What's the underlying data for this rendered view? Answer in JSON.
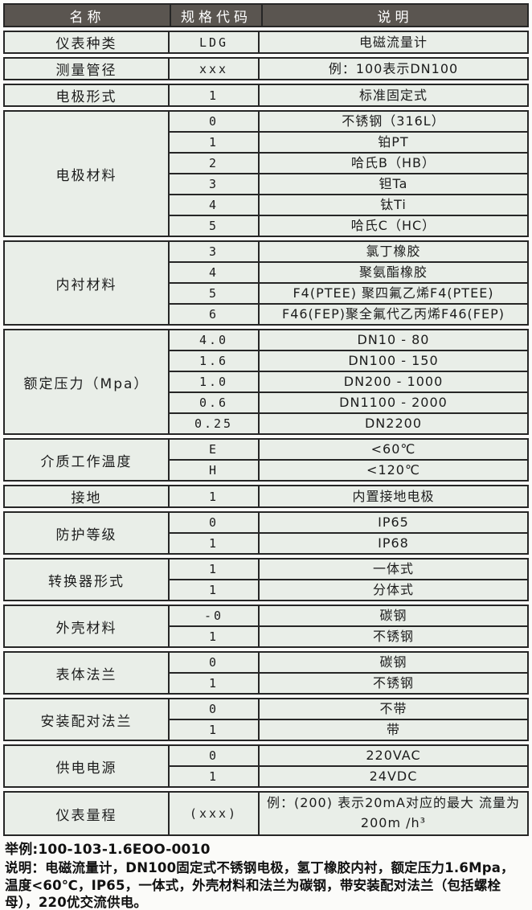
{
  "table": {
    "header": {
      "col1": "名称",
      "col2": "规格代码",
      "col3": "说明"
    },
    "groups": [
      {
        "name": "仪表种类",
        "rows": [
          {
            "code": "LDG",
            "desc": "电磁流量计"
          }
        ]
      },
      {
        "name": "测量管径",
        "rows": [
          {
            "code": "xxx",
            "desc": "例：100表示DN100"
          }
        ]
      },
      {
        "name": "电极形式",
        "rows": [
          {
            "code": "1",
            "desc": "标准固定式"
          }
        ]
      },
      {
        "name": "电极材料",
        "rows": [
          {
            "code": "0",
            "desc": "不锈钢（316L）"
          },
          {
            "code": "1",
            "desc": "铂PT"
          },
          {
            "code": "2",
            "desc": "哈氏B（HB）"
          },
          {
            "code": "3",
            "desc": "钽Ta"
          },
          {
            "code": "4",
            "desc": "钛Ti"
          },
          {
            "code": "5",
            "desc": "哈氏C（HC）"
          }
        ]
      },
      {
        "name": "内衬材料",
        "rows": [
          {
            "code": "3",
            "desc": "氯丁橡胶"
          },
          {
            "code": "4",
            "desc": "聚氨酯橡胶"
          },
          {
            "code": "5",
            "desc": "F4(PTEE) 聚四氟乙烯F4(PTEE)"
          },
          {
            "code": "6",
            "desc": "F46(FEP)聚全氟代乙丙烯F46(FEP)"
          }
        ]
      },
      {
        "name": "额定压力（Mpa）",
        "rows": [
          {
            "code": "4.0",
            "desc": "DN10 - 80"
          },
          {
            "code": "1.6",
            "desc": "DN100 - 150"
          },
          {
            "code": "1.0",
            "desc": "DN200 - 1000"
          },
          {
            "code": "0.6",
            "desc": "DN1100 - 2000"
          },
          {
            "code": "0.25",
            "desc": "DN2200"
          }
        ]
      },
      {
        "name": "介质工作温度",
        "rows": [
          {
            "code": "E",
            "desc": "<60℃"
          },
          {
            "code": "H",
            "desc": "<120℃"
          }
        ]
      },
      {
        "name": "接地",
        "rows": [
          {
            "code": "1",
            "desc": "内置接地电极"
          }
        ]
      },
      {
        "name": "防护等级",
        "rows": [
          {
            "code": "0",
            "desc": "IP65"
          },
          {
            "code": "1",
            "desc": "IP68"
          }
        ]
      },
      {
        "name": "转换器形式",
        "rows": [
          {
            "code": "1",
            "desc": "一体式"
          },
          {
            "code": "1",
            "desc": "分体式"
          }
        ]
      },
      {
        "name": "外壳材料",
        "rows": [
          {
            "code": "-0",
            "desc": "碳钢"
          },
          {
            "code": "1",
            "desc": "不锈钢"
          }
        ]
      },
      {
        "name": "表体法兰",
        "rows": [
          {
            "code": "0",
            "desc": "碳钢"
          },
          {
            "code": "1",
            "desc": "不锈钢"
          }
        ]
      },
      {
        "name": "安装配对法兰",
        "rows": [
          {
            "code": "0",
            "desc": "不带"
          },
          {
            "code": "1",
            "desc": "带"
          }
        ]
      },
      {
        "name": "供电电源",
        "rows": [
          {
            "code": "0",
            "desc": "220VAC"
          },
          {
            "code": "1",
            "desc": "24VDC"
          }
        ]
      },
      {
        "name": "仪表量程",
        "rows": [
          {
            "code": "(xxx)",
            "desc": "例：(200) 表示20mA对应的最大 流量为200m /h³"
          }
        ]
      }
    ]
  },
  "footer": {
    "example": "举例:100-103-1.6EOO-0010",
    "note": "说明：电磁流量计，DN100固定式不锈钢电极，氢丁橡胶内衬，额定压力1.6Mpa，温度<60℃，IP65，一体式，外壳材料和法兰为碳钢，带安装配对法兰（包括螺栓母），220优交流供电。"
  },
  "colors": {
    "header_bg": "#5a5550",
    "header_text": "#ffffff",
    "cell_bg": "#e9eee8",
    "border": "#262626",
    "text": "#1c1c1c"
  }
}
